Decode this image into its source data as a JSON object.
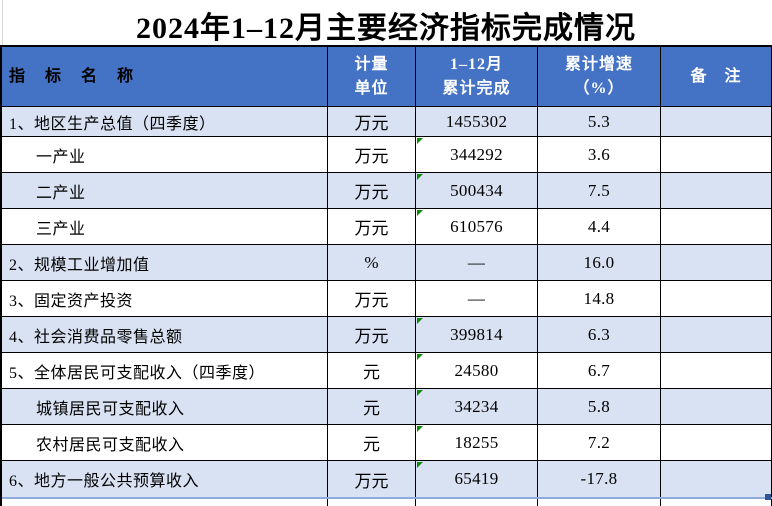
{
  "title": "2024年1–12月主要经济指标完成情况",
  "table": {
    "header": {
      "indicator": "指　标　名　称",
      "unit": "计量\n单位",
      "value": "1–12月\n累计完成",
      "growth": "累计增速\n（%）",
      "remark": "备　注"
    },
    "rows": [
      {
        "name": "1、地区生产总值（四季度）",
        "unit": "万元",
        "value": "1455302",
        "growth": "5.3",
        "remark": ""
      },
      {
        "name": "一产业",
        "unit": "万元",
        "value": "344292",
        "growth": "3.6",
        "remark": ""
      },
      {
        "name": "二产业",
        "unit": "万元",
        "value": "500434",
        "growth": "7.5",
        "remark": ""
      },
      {
        "name": "三产业",
        "unit": "万元",
        "value": "610576",
        "growth": "4.4",
        "remark": ""
      },
      {
        "name": "2、规模工业增加值",
        "unit": "%",
        "value": "—",
        "growth": "16.0",
        "remark": ""
      },
      {
        "name": "3、固定资产投资",
        "unit": "万元",
        "value": "—",
        "growth": "14.8",
        "remark": ""
      },
      {
        "name": "4、社会消费品零售总额",
        "unit": "万元",
        "value": "399814",
        "growth": "6.3",
        "remark": ""
      },
      {
        "name": "5、全体居民可支配收入（四季度）",
        "unit": "元",
        "value": "24580",
        "growth": "6.7",
        "remark": ""
      },
      {
        "name": "城镇居民可支配收入",
        "unit": "元",
        "value": "34234",
        "growth": "5.8",
        "remark": ""
      },
      {
        "name": "农村居民可支配收入",
        "unit": "元",
        "value": "18255",
        "growth": "7.2",
        "remark": ""
      },
      {
        "name": "6、地方一般公共预算收入",
        "unit": "万元",
        "value": "65419",
        "growth": "-17.8",
        "remark": ""
      }
    ]
  },
  "colors": {
    "header-bg": "#4472C4",
    "band-bg": "#D9E2F3",
    "grid-line": "#000000",
    "header-text": "#FFFFFF",
    "flag-green": "#0C8A0C",
    "bottom-line": "#8FAADC",
    "handle-blue": "#2F5597"
  }
}
